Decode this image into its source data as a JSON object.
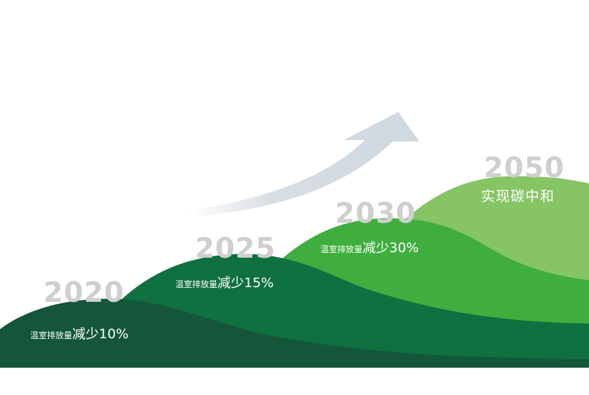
{
  "milestones": [
    {
      "year": "2020",
      "label_small": "温室排放量",
      "label_big": "减少10%"
    },
    {
      "year": "2025",
      "label_small": "温室排放量",
      "label_big": "减少15%"
    },
    {
      "year": "2030",
      "label_small": "温室排放量",
      "label_big": "减少30%"
    },
    {
      "year": "2050",
      "label": "实现碳中和"
    }
  ],
  "colors": {
    "hill_2020": "#14563a",
    "hill_2025": "#0f7040",
    "hill_2030": "#3fae3e",
    "hill_2050": "#86c464",
    "arrow": "#d3dbe2",
    "year_text": "#cfcfcf"
  }
}
